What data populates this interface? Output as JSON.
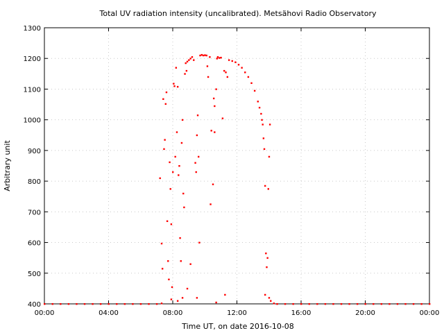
{
  "chart_data": {
    "type": "scatter",
    "title": "Total UV radiation intensity (uncalibrated). Metsähovi Radio Observatory",
    "xlabel": "Time UT, on date 2016-10-08",
    "ylabel": "Arbitrary unit",
    "xlim": [
      0,
      24
    ],
    "ylim": [
      400,
      1300
    ],
    "x_ticks": [
      0,
      4,
      8,
      12,
      16,
      20,
      24
    ],
    "x_tick_labels": [
      "00:00",
      "04:00",
      "08:00",
      "12:00",
      "16:00",
      "20:00",
      "00:00"
    ],
    "y_ticks": [
      400,
      500,
      600,
      700,
      800,
      900,
      1000,
      1100,
      1200,
      1300
    ],
    "y_tick_labels": [
      "400",
      "500",
      "600",
      "700",
      "800",
      "900",
      "1000",
      "1100",
      "1200",
      "1300"
    ],
    "grid": true,
    "marker_color": "#ff0000",
    "series": [
      {
        "points": [
          [
            0.0,
            400
          ],
          [
            0.5,
            400
          ],
          [
            1.0,
            400
          ],
          [
            1.5,
            400
          ],
          [
            2.0,
            400
          ],
          [
            2.5,
            400
          ],
          [
            3.0,
            400
          ],
          [
            3.5,
            400
          ],
          [
            4.0,
            400
          ],
          [
            4.5,
            400
          ],
          [
            5.0,
            400
          ],
          [
            5.5,
            400
          ],
          [
            6.0,
            400
          ],
          [
            6.5,
            400
          ],
          [
            7.0,
            400
          ],
          [
            7.3,
            402
          ],
          [
            7.2,
            810
          ],
          [
            7.3,
            597
          ],
          [
            7.35,
            515
          ],
          [
            7.4,
            1068
          ],
          [
            7.45,
            905
          ],
          [
            7.5,
            935
          ],
          [
            7.55,
            1052
          ],
          [
            7.6,
            1090
          ],
          [
            7.65,
            670
          ],
          [
            7.7,
            540
          ],
          [
            7.75,
            480
          ],
          [
            7.8,
            862
          ],
          [
            7.85,
            775
          ],
          [
            7.9,
            660
          ],
          [
            7.95,
            455
          ],
          [
            8.0,
            830
          ],
          [
            8.05,
            1118
          ],
          [
            8.1,
            1110
          ],
          [
            8.15,
            880
          ],
          [
            8.2,
            1170
          ],
          [
            8.25,
            960
          ],
          [
            8.3,
            1108
          ],
          [
            8.35,
            820
          ],
          [
            8.4,
            850
          ],
          [
            8.45,
            615
          ],
          [
            8.5,
            540
          ],
          [
            8.55,
            925
          ],
          [
            8.6,
            1000
          ],
          [
            8.65,
            760
          ],
          [
            8.7,
            715
          ],
          [
            8.75,
            1150
          ],
          [
            8.8,
            1185
          ],
          [
            8.85,
            1160
          ],
          [
            8.9,
            1190
          ],
          [
            9.0,
            1195
          ],
          [
            9.1,
            1200
          ],
          [
            9.2,
            1205
          ],
          [
            9.3,
            1195
          ],
          [
            9.4,
            860
          ],
          [
            9.45,
            830
          ],
          [
            9.5,
            950
          ],
          [
            9.55,
            1015
          ],
          [
            9.6,
            880
          ],
          [
            9.65,
            600
          ],
          [
            9.7,
            1210
          ],
          [
            9.8,
            1212
          ],
          [
            9.9,
            1210
          ],
          [
            10.0,
            1211
          ],
          [
            10.1,
            1210
          ],
          [
            10.15,
            1175
          ],
          [
            10.2,
            1140
          ],
          [
            10.3,
            1205
          ],
          [
            10.4,
            965
          ],
          [
            10.5,
            790
          ],
          [
            10.55,
            1070
          ],
          [
            10.6,
            1045
          ],
          [
            10.7,
            1100
          ],
          [
            10.75,
            1200
          ],
          [
            10.8,
            1205
          ],
          [
            10.9,
            1202
          ],
          [
            11.0,
            1203
          ],
          [
            11.1,
            1005
          ],
          [
            11.2,
            1160
          ],
          [
            11.3,
            1155
          ],
          [
            11.4,
            1140
          ],
          [
            11.5,
            1195
          ],
          [
            11.7,
            1192
          ],
          [
            11.9,
            1188
          ],
          [
            12.1,
            1180
          ],
          [
            12.3,
            1170
          ],
          [
            12.5,
            1155
          ],
          [
            12.7,
            1140
          ],
          [
            12.9,
            1120
          ],
          [
            13.1,
            1095
          ],
          [
            13.3,
            1060
          ],
          [
            13.4,
            1040
          ],
          [
            13.5,
            1020
          ],
          [
            13.55,
            1000
          ],
          [
            13.6,
            985
          ],
          [
            13.65,
            940
          ],
          [
            13.7,
            905
          ],
          [
            13.75,
            785
          ],
          [
            13.8,
            565
          ],
          [
            13.85,
            520
          ],
          [
            13.9,
            550
          ],
          [
            13.95,
            775
          ],
          [
            14.0,
            880
          ],
          [
            14.05,
            985
          ],
          [
            14.1,
            410
          ],
          [
            10.35,
            725
          ],
          [
            10.6,
            960
          ],
          [
            11.25,
            430
          ],
          [
            9.1,
            530
          ],
          [
            8.9,
            450
          ],
          [
            8.3,
            410
          ],
          [
            7.9,
            415
          ],
          [
            8.6,
            420
          ],
          [
            9.5,
            420
          ],
          [
            10.7,
            405
          ],
          [
            13.75,
            430
          ],
          [
            14.0,
            420
          ],
          [
            14.3,
            402
          ],
          [
            14.5,
            400
          ],
          [
            15.0,
            400
          ],
          [
            15.5,
            400
          ],
          [
            16.0,
            400
          ],
          [
            16.5,
            400
          ],
          [
            17.0,
            400
          ],
          [
            17.5,
            400
          ],
          [
            18.0,
            400
          ],
          [
            18.5,
            400
          ],
          [
            19.0,
            400
          ],
          [
            19.5,
            400
          ],
          [
            20.0,
            400
          ],
          [
            20.5,
            400
          ],
          [
            21.0,
            400
          ],
          [
            21.5,
            400
          ],
          [
            22.0,
            400
          ],
          [
            22.5,
            400
          ],
          [
            23.0,
            400
          ],
          [
            23.5,
            400
          ],
          [
            24.0,
            400
          ]
        ]
      }
    ]
  }
}
